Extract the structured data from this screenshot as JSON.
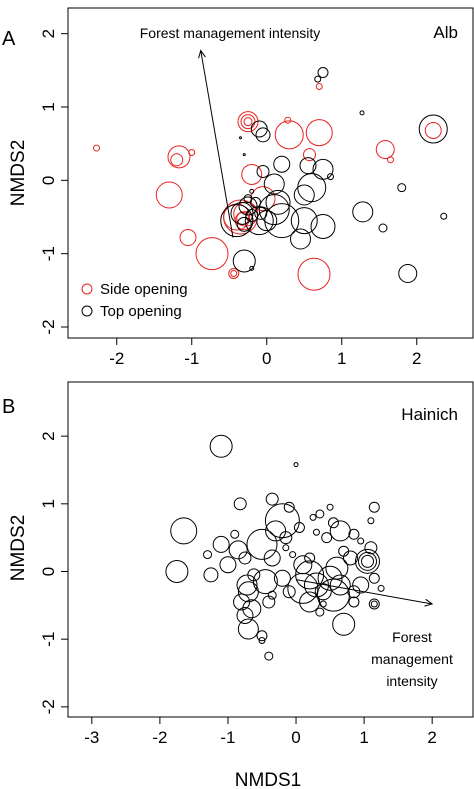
{
  "chart_data": [
    {
      "type": "scatter",
      "panel": "A",
      "site": "Alb",
      "xlabel": "",
      "ylabel": "NMDS2",
      "xlim": [
        -2.65,
        2.75
      ],
      "ylim": [
        -2.15,
        2.35
      ],
      "xticks": [
        -2,
        -1,
        0,
        1,
        2
      ],
      "yticks": [
        -2,
        -1,
        0,
        1,
        2
      ],
      "annotation": "Forest management intensity",
      "arrow": {
        "from": [
          -0.45,
          -0.78
        ],
        "to": [
          -0.88,
          1.77
        ]
      },
      "legend": {
        "position": "bottom-left",
        "entries": [
          "Side opening",
          "Top opening"
        ]
      },
      "colors": {
        "side": "#e8231f",
        "top": "#000000"
      },
      "series": [
        {
          "name": "Side opening",
          "color": "#e8231f",
          "points": [
            {
              "x": -2.27,
              "y": 0.44,
              "r": 3
            },
            {
              "x": -1.17,
              "y": 0.32,
              "r": 11
            },
            {
              "x": -1.2,
              "y": 0.28,
              "r": 6
            },
            {
              "x": -1.0,
              "y": 0.38,
              "r": 3
            },
            {
              "x": -1.3,
              "y": -0.2,
              "r": 13
            },
            {
              "x": -1.05,
              "y": -0.78,
              "r": 8
            },
            {
              "x": -0.73,
              "y": -1.0,
              "r": 16
            },
            {
              "x": -0.44,
              "y": -1.27,
              "r": 5
            },
            {
              "x": -0.44,
              "y": -1.27,
              "r": 3
            },
            {
              "x": -0.25,
              "y": 0.8,
              "r": 10
            },
            {
              "x": -0.25,
              "y": 0.8,
              "r": 7
            },
            {
              "x": -0.25,
              "y": 0.8,
              "r": 4
            },
            {
              "x": -0.2,
              "y": 0.08,
              "r": 10
            },
            {
              "x": -0.4,
              "y": -0.5,
              "r": 13
            },
            {
              "x": -0.35,
              "y": -0.5,
              "r": 17
            },
            {
              "x": -0.28,
              "y": -0.46,
              "r": 12
            },
            {
              "x": -0.3,
              "y": -0.55,
              "r": 9
            },
            {
              "x": -0.32,
              "y": -0.52,
              "r": 6
            },
            {
              "x": -0.05,
              "y": -0.25,
              "r": 12
            },
            {
              "x": 0.3,
              "y": 0.62,
              "r": 14
            },
            {
              "x": 0.28,
              "y": 0.82,
              "r": 3
            },
            {
              "x": 0.7,
              "y": 0.65,
              "r": 13
            },
            {
              "x": 0.7,
              "y": 1.28,
              "r": 3
            },
            {
              "x": 0.63,
              "y": -1.28,
              "r": 16
            },
            {
              "x": 0.57,
              "y": 0.35,
              "r": 6
            },
            {
              "x": 1.58,
              "y": 0.42,
              "r": 9
            },
            {
              "x": 1.65,
              "y": 0.28,
              "r": 3
            },
            {
              "x": 2.22,
              "y": 0.68,
              "r": 8
            }
          ]
        },
        {
          "name": "Top opening",
          "color": "#000000",
          "points": [
            {
              "x": 0.75,
              "y": 1.47,
              "r": 5
            },
            {
              "x": 0.68,
              "y": 1.38,
              "r": 3
            },
            {
              "x": 1.27,
              "y": 0.92,
              "r": 2
            },
            {
              "x": 2.22,
              "y": 0.7,
              "r": 14
            },
            {
              "x": 2.36,
              "y": -0.49,
              "r": 3
            },
            {
              "x": 1.8,
              "y": -0.1,
              "r": 4
            },
            {
              "x": 1.55,
              "y": -0.65,
              "r": 4
            },
            {
              "x": 1.88,
              "y": -1.27,
              "r": 9
            },
            {
              "x": 1.28,
              "y": -0.43,
              "r": 10
            },
            {
              "x": 0.75,
              "y": -0.63,
              "r": 12
            },
            {
              "x": 0.85,
              "y": 0.05,
              "r": 3
            },
            {
              "x": 0.75,
              "y": 0.15,
              "r": 10
            },
            {
              "x": 0.55,
              "y": 0.2,
              "r": 8
            },
            {
              "x": 0.6,
              "y": -0.1,
              "r": 14
            },
            {
              "x": 0.5,
              "y": -0.2,
              "r": 10
            },
            {
              "x": 0.5,
              "y": -0.55,
              "r": 13
            },
            {
              "x": 0.45,
              "y": -0.8,
              "r": 10
            },
            {
              "x": 0.2,
              "y": -0.55,
              "r": 17
            },
            {
              "x": 0.1,
              "y": -0.4,
              "r": 15
            },
            {
              "x": 0.15,
              "y": -0.3,
              "r": 12
            },
            {
              "x": 0.1,
              "y": -0.05,
              "r": 10
            },
            {
              "x": 0.2,
              "y": 0.22,
              "r": 8
            },
            {
              "x": -0.05,
              "y": 0.12,
              "r": 6
            },
            {
              "x": -0.1,
              "y": 0.7,
              "r": 8
            },
            {
              "x": -0.05,
              "y": 0.62,
              "r": 7
            },
            {
              "x": -0.3,
              "y": -1.1,
              "r": 11
            },
            {
              "x": -0.4,
              "y": -0.55,
              "r": 16
            },
            {
              "x": -0.33,
              "y": -0.45,
              "r": 11
            },
            {
              "x": -0.25,
              "y": -0.35,
              "r": 9
            },
            {
              "x": -0.3,
              "y": -0.6,
              "r": 7
            },
            {
              "x": -0.2,
              "y": -0.48,
              "r": 6
            },
            {
              "x": -0.15,
              "y": -0.3,
              "r": 5
            },
            {
              "x": -0.1,
              "y": -0.55,
              "r": 14
            },
            {
              "x": 0.0,
              "y": -0.55,
              "r": 10
            },
            {
              "x": -0.08,
              "y": -0.45,
              "r": 6
            },
            {
              "x": -0.25,
              "y": -0.25,
              "r": 4
            },
            {
              "x": -0.2,
              "y": -1.2,
              "r": 2
            },
            {
              "x": -0.35,
              "y": 0.58,
              "r": 1
            },
            {
              "x": -0.3,
              "y": 0.35,
              "r": 1
            },
            {
              "x": -0.2,
              "y": -0.15,
              "r": 2
            }
          ]
        }
      ]
    },
    {
      "type": "scatter",
      "panel": "B",
      "site": "Hainich",
      "xlabel": "NMDS1",
      "ylabel": "NMDS2",
      "xlim": [
        -3.35,
        2.6
      ],
      "ylim": [
        -2.15,
        2.8
      ],
      "xticks": [
        -3,
        -2,
        -1,
        0,
        1,
        2
      ],
      "yticks": [
        -2,
        -1,
        0,
        1,
        2
      ],
      "annotation_lines": [
        "Forest",
        "management",
        "intensity"
      ],
      "arrow": {
        "from": [
          0.0,
          -0.12
        ],
        "to": [
          2.0,
          -0.48
        ]
      },
      "series": [
        {
          "name": "",
          "color": "#000000",
          "points": [
            {
              "x": -1.1,
              "y": 1.85,
              "r": 11
            },
            {
              "x": -1.75,
              "y": 0.0,
              "r": 11
            },
            {
              "x": -1.65,
              "y": 0.6,
              "r": 13
            },
            {
              "x": -1.3,
              "y": 0.25,
              "r": 4
            },
            {
              "x": -1.25,
              "y": -0.05,
              "r": 7
            },
            {
              "x": -1.1,
              "y": 0.4,
              "r": 8
            },
            {
              "x": -1.0,
              "y": 0.1,
              "r": 8
            },
            {
              "x": -0.9,
              "y": 0.55,
              "r": 4
            },
            {
              "x": -0.85,
              "y": 0.32,
              "r": 9
            },
            {
              "x": -0.82,
              "y": 1.0,
              "r": 6
            },
            {
              "x": -0.75,
              "y": 0.2,
              "r": 6
            },
            {
              "x": -0.72,
              "y": -0.2,
              "r": 10
            },
            {
              "x": -0.8,
              "y": -0.45,
              "r": 8
            },
            {
              "x": -0.7,
              "y": -0.3,
              "r": 10
            },
            {
              "x": -0.75,
              "y": -0.65,
              "r": 8
            },
            {
              "x": -0.7,
              "y": -0.85,
              "r": 10
            },
            {
              "x": -0.65,
              "y": -0.55,
              "r": 9
            },
            {
              "x": -0.62,
              "y": -0.05,
              "r": 6
            },
            {
              "x": -0.5,
              "y": 0.4,
              "r": 15
            },
            {
              "x": -0.35,
              "y": 1.07,
              "r": 6
            },
            {
              "x": -0.3,
              "y": 0.6,
              "r": 10
            },
            {
              "x": -0.2,
              "y": 0.75,
              "r": 17
            },
            {
              "x": -0.35,
              "y": 0.2,
              "r": 8
            },
            {
              "x": -0.45,
              "y": -0.15,
              "r": 12
            },
            {
              "x": -0.4,
              "y": -0.45,
              "r": 6
            },
            {
              "x": -0.5,
              "y": -0.95,
              "r": 5
            },
            {
              "x": -0.5,
              "y": -1.02,
              "r": 3
            },
            {
              "x": -0.4,
              "y": -1.25,
              "r": 4
            },
            {
              "x": -0.35,
              "y": -0.35,
              "r": 4
            },
            {
              "x": -0.1,
              "y": -0.3,
              "r": 6
            },
            {
              "x": -0.2,
              "y": -0.1,
              "r": 8
            },
            {
              "x": -0.15,
              "y": 0.5,
              "r": 6
            },
            {
              "x": 0.05,
              "y": 0.65,
              "r": 5
            },
            {
              "x": -0.05,
              "y": 0.25,
              "r": 3
            },
            {
              "x": 0.0,
              "y": 1.58,
              "r": 2
            },
            {
              "x": -0.1,
              "y": 0.95,
              "r": 5
            },
            {
              "x": -0.15,
              "y": 0.35,
              "r": 3
            },
            {
              "x": 0.1,
              "y": 0.1,
              "r": 9
            },
            {
              "x": 0.2,
              "y": 0.2,
              "r": 5
            },
            {
              "x": 0.2,
              "y": -0.05,
              "r": 14
            },
            {
              "x": 0.3,
              "y": -0.2,
              "r": 12
            },
            {
              "x": 0.1,
              "y": -0.25,
              "r": 15
            },
            {
              "x": 0.2,
              "y": -0.45,
              "r": 10
            },
            {
              "x": 0.4,
              "y": -0.3,
              "r": 8
            },
            {
              "x": 0.5,
              "y": -0.1,
              "r": 12
            },
            {
              "x": 0.55,
              "y": -0.35,
              "r": 16
            },
            {
              "x": 0.65,
              "y": -0.2,
              "r": 10
            },
            {
              "x": 0.6,
              "y": 0.05,
              "r": 11
            },
            {
              "x": 0.7,
              "y": 0.3,
              "r": 5
            },
            {
              "x": 0.8,
              "y": 0.2,
              "r": 7
            },
            {
              "x": 0.65,
              "y": 0.6,
              "r": 10
            },
            {
              "x": 0.45,
              "y": 0.5,
              "r": 5
            },
            {
              "x": 0.35,
              "y": 0.85,
              "r": 4
            },
            {
              "x": 0.5,
              "y": 0.95,
              "r": 3
            },
            {
              "x": 0.55,
              "y": 0.72,
              "r": 5
            },
            {
              "x": 0.25,
              "y": 0.8,
              "r": 3
            },
            {
              "x": 0.3,
              "y": 0.58,
              "r": 3
            },
            {
              "x": 0.85,
              "y": 0.55,
              "r": 5
            },
            {
              "x": 0.95,
              "y": 0.45,
              "r": 3
            },
            {
              "x": 1.1,
              "y": 0.75,
              "r": 3
            },
            {
              "x": 1.15,
              "y": 0.95,
              "r": 5
            },
            {
              "x": 1.1,
              "y": 0.35,
              "r": 6
            },
            {
              "x": 1.05,
              "y": 0.15,
              "r": 12
            },
            {
              "x": 1.05,
              "y": 0.15,
              "r": 9
            },
            {
              "x": 1.05,
              "y": 0.15,
              "r": 6
            },
            {
              "x": 0.95,
              "y": -0.2,
              "r": 8
            },
            {
              "x": 0.85,
              "y": -0.3,
              "r": 6
            },
            {
              "x": 0.85,
              "y": -0.45,
              "r": 5
            },
            {
              "x": 1.15,
              "y": -0.1,
              "r": 5
            },
            {
              "x": 1.25,
              "y": -0.25,
              "r": 3
            },
            {
              "x": 1.15,
              "y": -0.48,
              "r": 5
            },
            {
              "x": 1.15,
              "y": -0.48,
              "r": 3
            },
            {
              "x": 0.7,
              "y": -0.78,
              "r": 11
            },
            {
              "x": 0.35,
              "y": -0.6,
              "r": 4
            },
            {
              "x": 0.4,
              "y": -0.48,
              "r": 3
            }
          ]
        }
      ]
    }
  ]
}
